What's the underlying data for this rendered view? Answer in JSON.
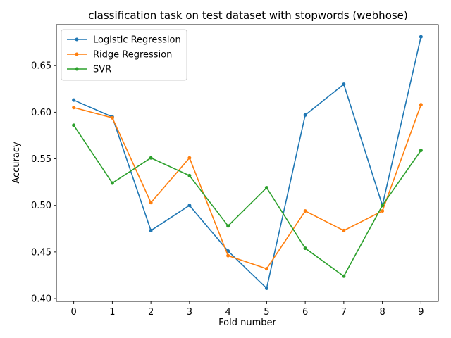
{
  "chart_data": {
    "type": "line",
    "title": "classification task on test dataset with stopwords (webhose)",
    "xlabel": "Fold number",
    "ylabel": "Accuracy",
    "x": [
      0,
      1,
      2,
      3,
      4,
      5,
      6,
      7,
      8,
      9
    ],
    "xlim": [
      -0.45,
      9.45
    ],
    "ylim": [
      0.397,
      0.694
    ],
    "yticks": [
      0.4,
      0.45,
      0.5,
      0.55,
      0.6,
      0.65
    ],
    "ytick_labels": [
      "0.40",
      "0.45",
      "0.50",
      "0.55",
      "0.60",
      "0.65"
    ],
    "xtick_labels": [
      "0",
      "1",
      "2",
      "3",
      "4",
      "5",
      "6",
      "7",
      "8",
      "9"
    ],
    "grid": false,
    "legend_position": "top-left",
    "series": [
      {
        "name": "Logistic Regression",
        "color": "#1f77b4",
        "values": [
          0.613,
          0.595,
          0.473,
          0.5,
          0.451,
          0.411,
          0.597,
          0.63,
          0.5,
          0.681
        ]
      },
      {
        "name": "Ridge Regression",
        "color": "#ff7f0e",
        "values": [
          0.605,
          0.594,
          0.503,
          0.551,
          0.446,
          0.432,
          0.494,
          0.473,
          0.494,
          0.608
        ]
      },
      {
        "name": "SVR",
        "color": "#2ca02c",
        "values": [
          0.586,
          0.524,
          0.551,
          0.532,
          0.478,
          0.519,
          0.454,
          0.424,
          0.5,
          0.559
        ]
      }
    ]
  }
}
